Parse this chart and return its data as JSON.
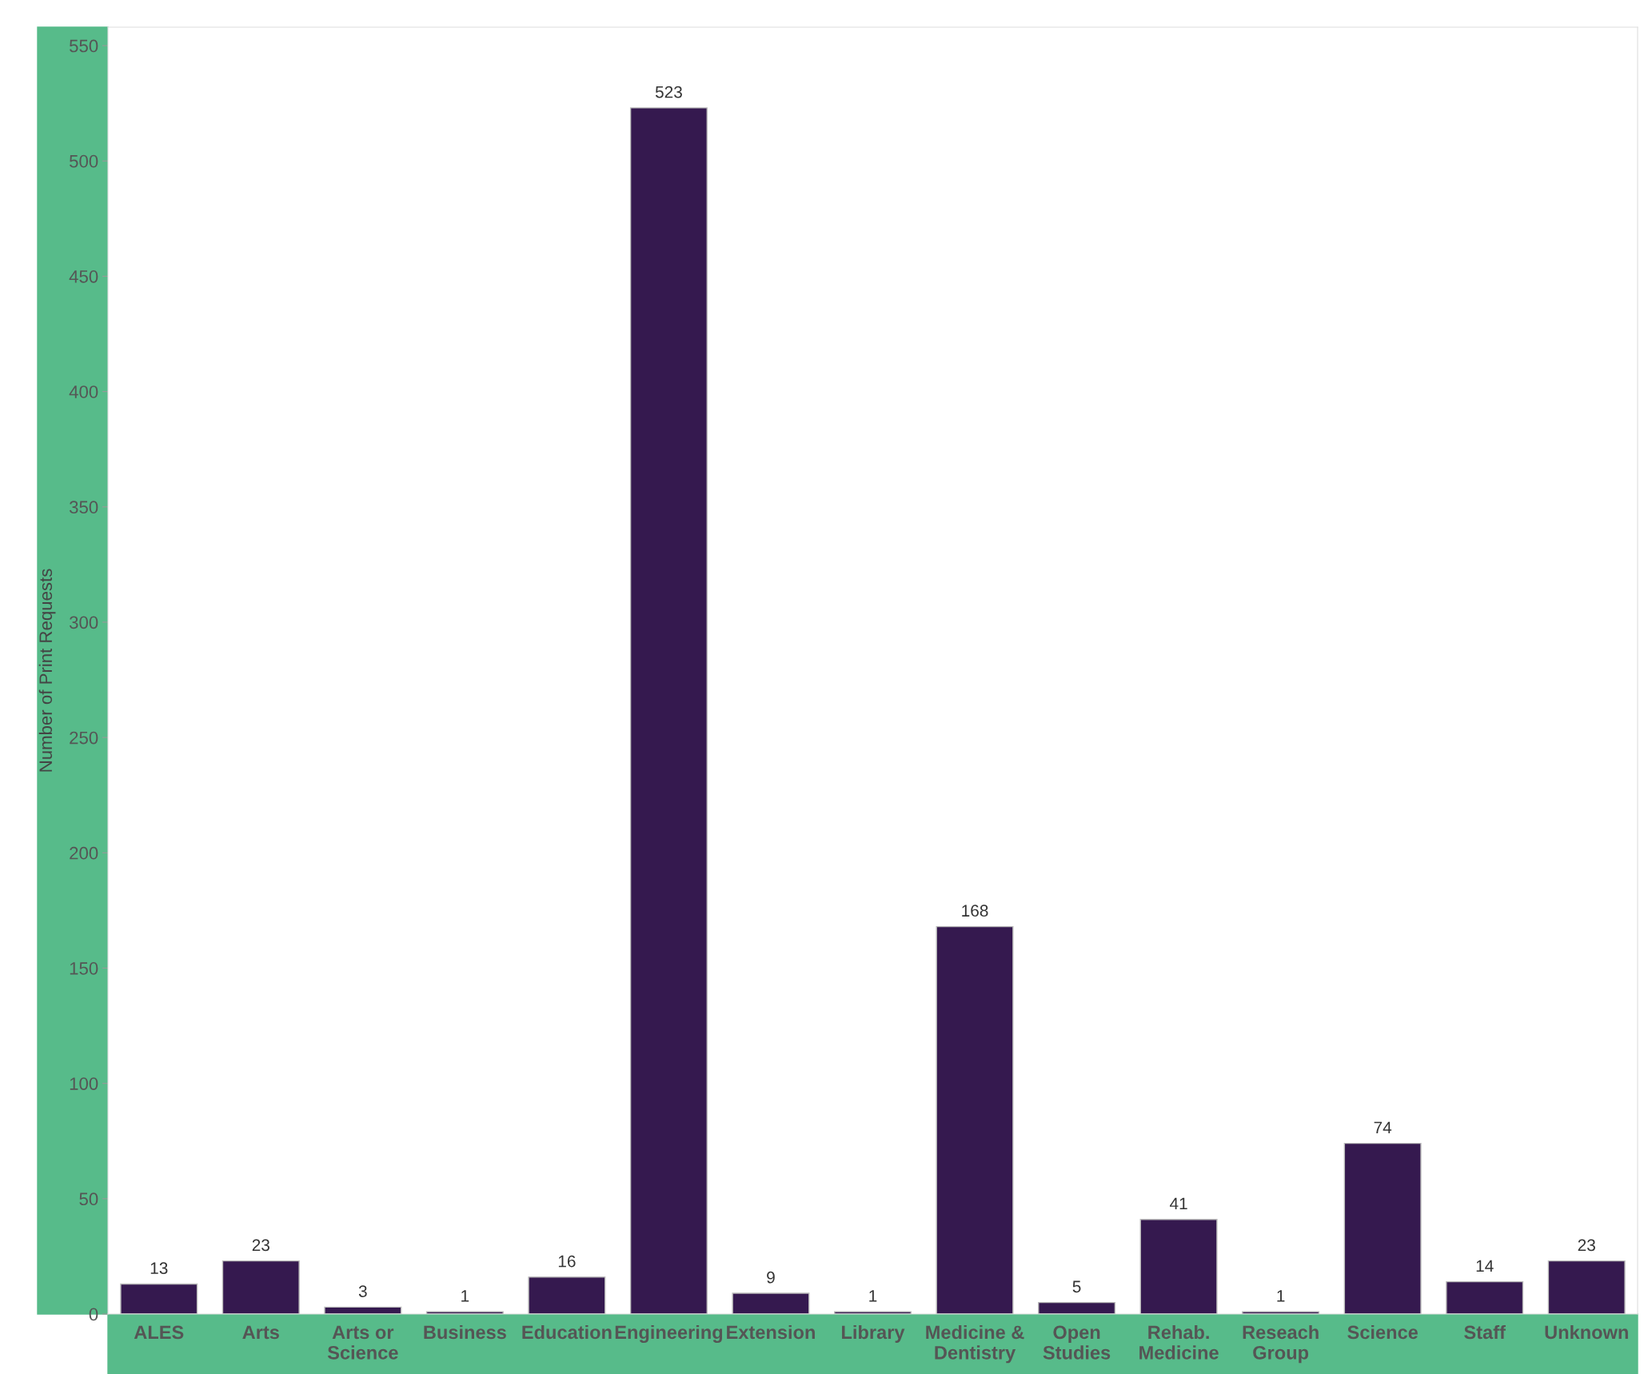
{
  "chart_data": {
    "type": "bar",
    "ylabel": "Number of Print Requests",
    "categories": [
      "ALES",
      "Arts",
      "Arts or\nScience",
      "Business",
      "Education",
      "Engineering",
      "Extension",
      "Library",
      "Medicine &\nDentistry",
      "Open\nStudies",
      "Rehab.\nMedicine",
      "Reseach\nGroup",
      "Science",
      "Staff",
      "Unknown"
    ],
    "values": [
      13,
      23,
      3,
      1,
      16,
      523,
      9,
      1,
      168,
      5,
      41,
      1,
      74,
      14,
      23
    ],
    "color": "#35194f",
    "ylim": [
      0,
      558
    ],
    "yticks": [
      0,
      50,
      100,
      150,
      200,
      250,
      300,
      350,
      400,
      450,
      500,
      550
    ],
    "data_labels": true,
    "grid": false,
    "legend": false
  }
}
